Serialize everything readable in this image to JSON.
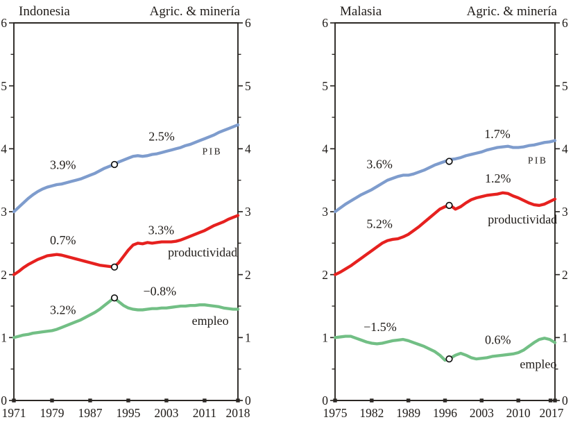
{
  "colors": {
    "pib": "#7e9ccd",
    "productividad": "#e6211f",
    "empleo": "#72bf85",
    "axis": "#2b2724",
    "text": "#1f1b18",
    "marker_fill": "#ffffff",
    "marker_stroke": "#111111",
    "background": "#ffffff"
  },
  "chart_data": [
    {
      "type": "line",
      "title": "Indonesia",
      "sector_label": "Agric. & minería",
      "ylim": [
        0,
        6
      ],
      "y_major_step": 1,
      "y_minor_step": 0.5,
      "xlim": [
        1971,
        2018
      ],
      "x_ticks": [
        {
          "year": 1971,
          "label": "1971"
        },
        {
          "year": 1979,
          "label": "1979"
        },
        {
          "year": 1987,
          "label": "1987"
        },
        {
          "year": 1995,
          "label": "1995"
        },
        {
          "year": 2003,
          "label": "2003"
        },
        {
          "year": 2011,
          "label": "2011"
        },
        {
          "year": 2018,
          "label": "2018"
        }
      ],
      "start_year": 1971,
      "series": [
        {
          "name": "PIB",
          "color_key": "pib",
          "break_point": {
            "year": 1992.1,
            "value": 3.75
          },
          "values": [
            3.0,
            3.07,
            3.14,
            3.21,
            3.27,
            3.32,
            3.36,
            3.39,
            3.41,
            3.43,
            3.44,
            3.46,
            3.48,
            3.5,
            3.52,
            3.55,
            3.58,
            3.61,
            3.65,
            3.69,
            3.72,
            3.75,
            3.79,
            3.82,
            3.85,
            3.88,
            3.89,
            3.88,
            3.89,
            3.91,
            3.92,
            3.94,
            3.96,
            3.98,
            4.0,
            4.02,
            4.05,
            4.07,
            4.1,
            4.13,
            4.16,
            4.19,
            4.22,
            4.26,
            4.29,
            4.32,
            4.35,
            4.38
          ]
        },
        {
          "name": "productividad",
          "color_key": "productividad",
          "break_point": {
            "year": 1992.1,
            "value": 2.12
          },
          "values": [
            2.0,
            2.05,
            2.11,
            2.16,
            2.2,
            2.24,
            2.27,
            2.3,
            2.31,
            2.32,
            2.31,
            2.29,
            2.27,
            2.25,
            2.23,
            2.21,
            2.19,
            2.17,
            2.15,
            2.14,
            2.13,
            2.12,
            2.19,
            2.29,
            2.39,
            2.47,
            2.5,
            2.49,
            2.51,
            2.5,
            2.51,
            2.52,
            2.52,
            2.52,
            2.53,
            2.55,
            2.58,
            2.61,
            2.64,
            2.67,
            2.7,
            2.74,
            2.78,
            2.81,
            2.84,
            2.88,
            2.91,
            2.94
          ]
        },
        {
          "name": "empleo",
          "color_key": "empleo",
          "break_point": {
            "year": 1992.1,
            "value": 1.63
          },
          "values": [
            1.0,
            1.02,
            1.04,
            1.05,
            1.07,
            1.08,
            1.09,
            1.1,
            1.11,
            1.13,
            1.16,
            1.19,
            1.22,
            1.25,
            1.28,
            1.32,
            1.36,
            1.4,
            1.45,
            1.51,
            1.57,
            1.63,
            1.57,
            1.51,
            1.47,
            1.45,
            1.44,
            1.44,
            1.45,
            1.46,
            1.46,
            1.47,
            1.47,
            1.48,
            1.49,
            1.5,
            1.5,
            1.51,
            1.51,
            1.52,
            1.52,
            1.51,
            1.5,
            1.49,
            1.47,
            1.46,
            1.45,
            1.45
          ]
        }
      ],
      "annotations": [
        {
          "text": "3.9%",
          "year": 1981.3,
          "value": 3.75,
          "style": "pct"
        },
        {
          "text": "2.5%",
          "year": 2002.0,
          "value": 4.2,
          "style": "pct"
        },
        {
          "text": "PIB",
          "year": 2012.6,
          "value": 3.96,
          "style": "smallcaps"
        },
        {
          "text": "0.7%",
          "year": 1981.3,
          "value": 2.55,
          "style": "pct"
        },
        {
          "text": "3.3%",
          "year": 2001.9,
          "value": 2.71,
          "style": "pct"
        },
        {
          "text": "productividad",
          "year": 2010.6,
          "value": 2.36,
          "style": "series"
        },
        {
          "text": "3.2%",
          "year": 1981.3,
          "value": 1.44,
          "style": "pct"
        },
        {
          "text": "−0.8%",
          "year": 2001.6,
          "value": 1.74,
          "style": "pct"
        },
        {
          "text": "empleo",
          "year": 2012.2,
          "value": 1.27,
          "style": "series"
        }
      ]
    },
    {
      "type": "line",
      "title": "Malasia",
      "sector_label": "Agric. & minería",
      "ylim": [
        0,
        6
      ],
      "y_major_step": 1,
      "y_minor_step": 0.5,
      "xlim": [
        1975,
        2017
      ],
      "x_ticks": [
        {
          "year": 1975,
          "label": "1975"
        },
        {
          "year": 1982,
          "label": "1982"
        },
        {
          "year": 1989,
          "label": "1989"
        },
        {
          "year": 1996,
          "label": "1996"
        },
        {
          "year": 2003,
          "label": "2003"
        },
        {
          "year": 2010,
          "label": "2010"
        },
        {
          "year": 2016.15,
          "label": ""
        },
        {
          "year": 2017,
          "label": "2017",
          "label_shift": -5
        }
      ],
      "start_year": 1975,
      "series": [
        {
          "name": "PIB",
          "color_key": "pib",
          "break_point": {
            "year": 1996.8,
            "value": 3.8
          },
          "values": [
            3.0,
            3.06,
            3.12,
            3.17,
            3.22,
            3.27,
            3.31,
            3.35,
            3.4,
            3.45,
            3.5,
            3.53,
            3.56,
            3.58,
            3.58,
            3.6,
            3.63,
            3.66,
            3.7,
            3.74,
            3.77,
            3.8,
            3.83,
            3.84,
            3.86,
            3.89,
            3.91,
            3.93,
            3.95,
            3.98,
            4.0,
            4.02,
            4.03,
            4.04,
            4.02,
            4.02,
            4.03,
            4.05,
            4.06,
            4.08,
            4.1,
            4.11,
            4.13
          ]
        },
        {
          "name": "productividad",
          "color_key": "productividad",
          "break_point": {
            "year": 1996.8,
            "value": 3.1
          },
          "values": [
            2.0,
            2.04,
            2.09,
            2.14,
            2.2,
            2.26,
            2.32,
            2.38,
            2.44,
            2.5,
            2.54,
            2.56,
            2.57,
            2.6,
            2.64,
            2.7,
            2.76,
            2.83,
            2.9,
            2.97,
            3.04,
            3.08,
            3.1,
            3.04,
            3.08,
            3.14,
            3.19,
            3.22,
            3.24,
            3.26,
            3.27,
            3.28,
            3.3,
            3.29,
            3.25,
            3.22,
            3.18,
            3.14,
            3.11,
            3.1,
            3.12,
            3.16,
            3.2
          ]
        },
        {
          "name": "empleo",
          "color_key": "empleo",
          "break_point": {
            "year": 1996.8,
            "value": 0.66
          },
          "values": [
            1.0,
            1.01,
            1.02,
            1.02,
            0.99,
            0.96,
            0.93,
            0.91,
            0.9,
            0.91,
            0.93,
            0.95,
            0.96,
            0.97,
            0.95,
            0.92,
            0.89,
            0.86,
            0.82,
            0.78,
            0.72,
            0.64,
            0.67,
            0.72,
            0.75,
            0.72,
            0.68,
            0.66,
            0.67,
            0.68,
            0.7,
            0.71,
            0.72,
            0.73,
            0.74,
            0.76,
            0.8,
            0.86,
            0.92,
            0.97,
            0.99,
            0.97,
            0.92
          ]
        }
      ],
      "annotations": [
        {
          "text": "3.6%",
          "year": 1983.5,
          "value": 3.76,
          "style": "pct"
        },
        {
          "text": "1.7%",
          "year": 2006.0,
          "value": 4.24,
          "style": "pct"
        },
        {
          "text": "PIB",
          "year": 2013.7,
          "value": 3.82,
          "style": "smallcaps"
        },
        {
          "text": "1.2%",
          "year": 2006.1,
          "value": 3.53,
          "style": "pct"
        },
        {
          "text": "5.2%",
          "year": 1983.5,
          "value": 2.81,
          "style": "pct"
        },
        {
          "text": "productividad",
          "year": 2010.8,
          "value": 2.88,
          "style": "series"
        },
        {
          "text": "−1.5%",
          "year": 1983.6,
          "value": 1.17,
          "style": "pct"
        },
        {
          "text": "0.6%",
          "year": 2006.1,
          "value": 0.97,
          "style": "pct"
        },
        {
          "text": "empleo",
          "year": 2013.8,
          "value": 0.58,
          "style": "series"
        }
      ]
    }
  ]
}
